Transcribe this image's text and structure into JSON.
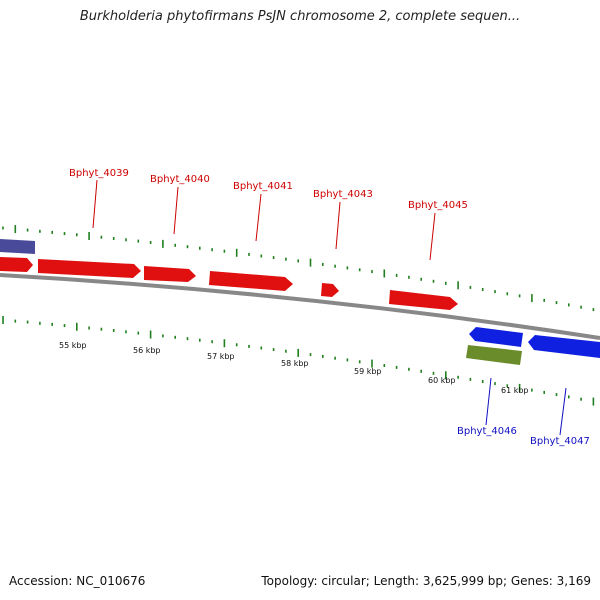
{
  "title": "Burkholderia phytofirmans PsJN chromosome 2, complete sequen...",
  "footer": {
    "accession": "Accession: NC_010676",
    "stats": "Topology: circular; Length: 3,625,999 bp; Genes: 3,169"
  },
  "colors": {
    "forward_gene": "#e01010",
    "reverse_gene": "#1020e0",
    "rna_gene": "#6b8c2a",
    "upstream_gene": "#4a4a9a",
    "tick": "#208020",
    "backbone": "#888888",
    "forward_label": "#cc0000",
    "reverse_label": "#1010c0"
  },
  "ruler": {
    "labels": [
      "55 kbp",
      "56 kbp",
      "57 kbp",
      "58 kbp",
      "59 kbp",
      "60 kbp",
      "61 kbp"
    ]
  },
  "genes": [
    {
      "label": "Bphyt_4039",
      "strand": "forward"
    },
    {
      "label": "Bphyt_4040",
      "strand": "forward"
    },
    {
      "label": "Bphyt_4041",
      "strand": "forward"
    },
    {
      "label": "Bphyt_4043",
      "strand": "forward"
    },
    {
      "label": "Bphyt_4045",
      "strand": "forward"
    },
    {
      "label": "Bphyt_4046",
      "strand": "reverse"
    },
    {
      "label": "Bphyt_4047",
      "strand": "reverse"
    }
  ]
}
